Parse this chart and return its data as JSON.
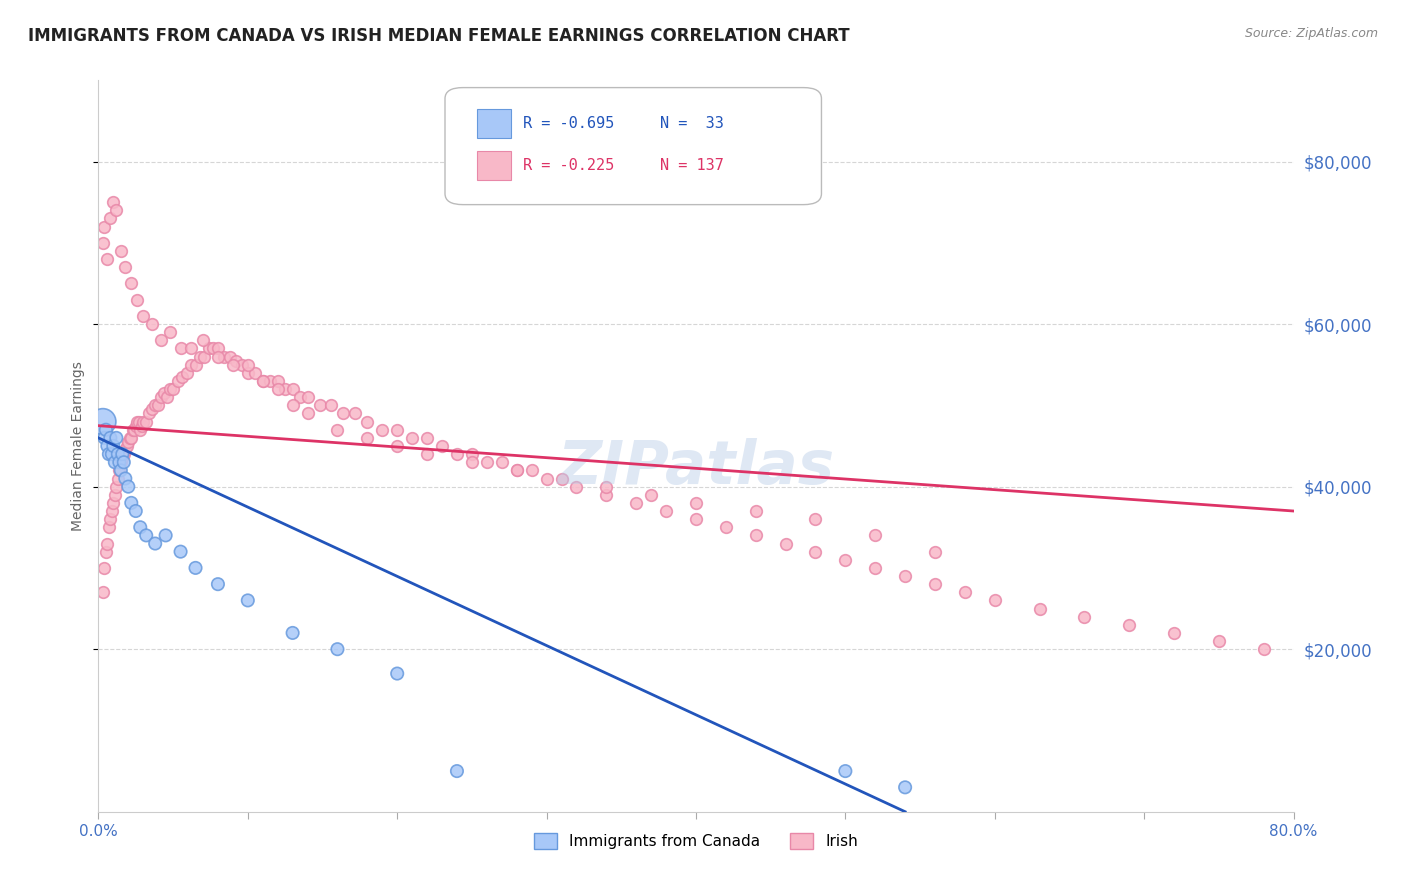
{
  "title": "IMMIGRANTS FROM CANADA VS IRISH MEDIAN FEMALE EARNINGS CORRELATION CHART",
  "source": "Source: ZipAtlas.com",
  "ylabel": "Median Female Earnings",
  "canada_color": "#a8c8f8",
  "canada_edge_color": "#6699dd",
  "irish_color": "#f8b8c8",
  "irish_edge_color": "#e888a8",
  "trendline_canada_color": "#2255bb",
  "trendline_irish_color": "#dd3366",
  "background_color": "#ffffff",
  "watermark": "ZIPatlas",
  "xlim": [
    0.0,
    0.8
  ],
  "ylim": [
    0,
    90000
  ],
  "ytick_values": [
    20000,
    40000,
    60000,
    80000
  ],
  "grid_color": "#cccccc",
  "title_fontsize": 12,
  "axis_label_color": "#4472c4",
  "legend_text_color": "#333333",
  "canada_scatter_x": [
    0.003,
    0.004,
    0.005,
    0.006,
    0.007,
    0.008,
    0.009,
    0.01,
    0.011,
    0.012,
    0.013,
    0.014,
    0.015,
    0.016,
    0.017,
    0.018,
    0.02,
    0.022,
    0.025,
    0.028,
    0.032,
    0.038,
    0.045,
    0.055,
    0.065,
    0.08,
    0.1,
    0.13,
    0.16,
    0.2,
    0.24,
    0.5,
    0.54
  ],
  "canada_scatter_y": [
    48000,
    46000,
    47000,
    45000,
    44000,
    46000,
    44000,
    45000,
    43000,
    46000,
    44000,
    43000,
    42000,
    44000,
    43000,
    41000,
    40000,
    38000,
    37000,
    35000,
    34000,
    33000,
    34000,
    32000,
    30000,
    28000,
    26000,
    22000,
    20000,
    17000,
    5000,
    5000,
    3000
  ],
  "canada_sizes": [
    350,
    80,
    80,
    80,
    80,
    80,
    80,
    80,
    80,
    80,
    80,
    80,
    80,
    80,
    80,
    80,
    80,
    80,
    80,
    80,
    80,
    80,
    80,
    80,
    80,
    80,
    80,
    80,
    80,
    80,
    80,
    80,
    80
  ],
  "irish_scatter_x": [
    0.003,
    0.004,
    0.005,
    0.006,
    0.007,
    0.008,
    0.009,
    0.01,
    0.011,
    0.012,
    0.013,
    0.014,
    0.015,
    0.016,
    0.017,
    0.018,
    0.019,
    0.02,
    0.021,
    0.022,
    0.023,
    0.024,
    0.025,
    0.026,
    0.027,
    0.028,
    0.029,
    0.03,
    0.032,
    0.034,
    0.036,
    0.038,
    0.04,
    0.042,
    0.044,
    0.046,
    0.048,
    0.05,
    0.053,
    0.056,
    0.059,
    0.062,
    0.065,
    0.068,
    0.071,
    0.074,
    0.077,
    0.08,
    0.084,
    0.088,
    0.092,
    0.096,
    0.1,
    0.105,
    0.11,
    0.115,
    0.12,
    0.125,
    0.13,
    0.135,
    0.14,
    0.148,
    0.156,
    0.164,
    0.172,
    0.18,
    0.19,
    0.2,
    0.21,
    0.22,
    0.23,
    0.24,
    0.25,
    0.26,
    0.27,
    0.28,
    0.29,
    0.3,
    0.32,
    0.34,
    0.36,
    0.38,
    0.4,
    0.42,
    0.44,
    0.46,
    0.48,
    0.5,
    0.52,
    0.54,
    0.56,
    0.58,
    0.6,
    0.63,
    0.66,
    0.69,
    0.72,
    0.75,
    0.78,
    0.003,
    0.004,
    0.006,
    0.008,
    0.01,
    0.012,
    0.015,
    0.018,
    0.022,
    0.026,
    0.03,
    0.036,
    0.042,
    0.048,
    0.055,
    0.062,
    0.07,
    0.08,
    0.09,
    0.1,
    0.11,
    0.12,
    0.13,
    0.14,
    0.16,
    0.18,
    0.2,
    0.22,
    0.25,
    0.28,
    0.31,
    0.34,
    0.37,
    0.4,
    0.44,
    0.48,
    0.52,
    0.56
  ],
  "irish_scatter_y": [
    27000,
    30000,
    32000,
    33000,
    35000,
    36000,
    37000,
    38000,
    39000,
    40000,
    41000,
    42000,
    43000,
    43500,
    44000,
    44500,
    45000,
    45500,
    46000,
    46000,
    47000,
    47000,
    47500,
    48000,
    48000,
    47000,
    47500,
    48000,
    48000,
    49000,
    49500,
    50000,
    50000,
    51000,
    51500,
    51000,
    52000,
    52000,
    53000,
    53500,
    54000,
    55000,
    55000,
    56000,
    56000,
    57000,
    57000,
    57000,
    56000,
    56000,
    55500,
    55000,
    54000,
    54000,
    53000,
    53000,
    53000,
    52000,
    52000,
    51000,
    51000,
    50000,
    50000,
    49000,
    49000,
    48000,
    47000,
    47000,
    46000,
    46000,
    45000,
    44000,
    44000,
    43000,
    43000,
    42000,
    42000,
    41000,
    40000,
    39000,
    38000,
    37000,
    36000,
    35000,
    34000,
    33000,
    32000,
    31000,
    30000,
    29000,
    28000,
    27000,
    26000,
    25000,
    24000,
    23000,
    22000,
    21000,
    20000,
    70000,
    72000,
    68000,
    73000,
    75000,
    74000,
    69000,
    67000,
    65000,
    63000,
    61000,
    60000,
    58000,
    59000,
    57000,
    57000,
    58000,
    56000,
    55000,
    55000,
    53000,
    52000,
    50000,
    49000,
    47000,
    46000,
    45000,
    44000,
    43000,
    42000,
    41000,
    40000,
    39000,
    38000,
    37000,
    36000,
    34000,
    32000
  ],
  "irish_size": 70,
  "trendline_canada_x0": 0.0,
  "trendline_canada_y0": 46000,
  "trendline_canada_x1": 0.54,
  "trendline_canada_y1": 0,
  "trendline_irish_x0": 0.0,
  "trendline_irish_y0": 47500,
  "trendline_irish_x1": 0.8,
  "trendline_irish_y1": 37000
}
